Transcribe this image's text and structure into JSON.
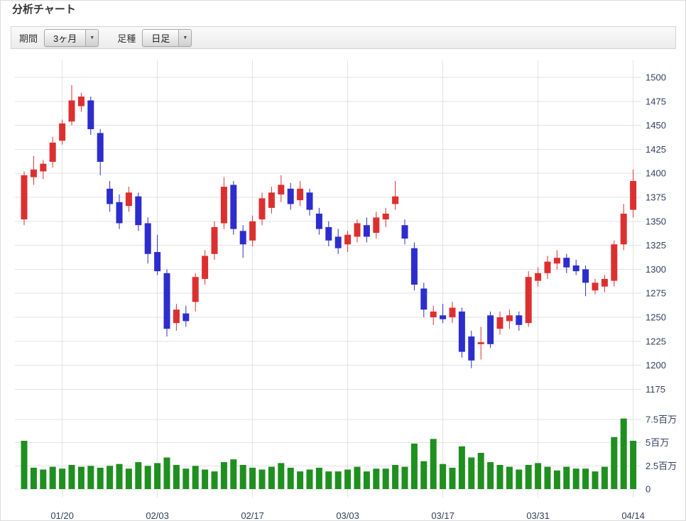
{
  "page": {
    "title": "分析チャート"
  },
  "toolbar": {
    "period_label": "期間",
    "period_value": "3ヶ月",
    "candle_type_label": "足種",
    "candle_type_value": "日足",
    "dropdown_arrow": "▼"
  },
  "chart_data": {
    "type": "candlestick",
    "title": "分析チャート",
    "grid": true,
    "price_axis": {
      "side": "right",
      "ticks": [
        1500,
        1475,
        1450,
        1425,
        1400,
        1375,
        1350,
        1325,
        1300,
        1275,
        1250,
        1225,
        1200,
        1175
      ]
    },
    "volume_axis": {
      "side": "right",
      "unit": "百万",
      "ticks": [
        {
          "label": "7.5百万",
          "value": 7.5
        },
        {
          "label": "5百万",
          "value": 5
        },
        {
          "label": "2.5百万",
          "value": 2.5
        },
        {
          "label": "0",
          "value": 0
        }
      ]
    },
    "x_axis": {
      "labels": [
        "01/20",
        "02/03",
        "02/17",
        "03/03",
        "03/17",
        "03/31",
        "04/14"
      ],
      "label_indices": [
        4,
        14,
        24,
        34,
        44,
        54,
        64
      ]
    },
    "colors": {
      "up": "#dc3030",
      "down": "#2d2dcd",
      "volume": "#1f8f1f",
      "grid": "#e2e2e2",
      "axis_text": "#333f5e"
    },
    "candles": {
      "columns": [
        "date",
        "open",
        "high",
        "low",
        "close",
        "volume_millions"
      ],
      "rows": [
        [
          "01/14",
          1352,
          1402,
          1346,
          1398,
          5.2
        ],
        [
          "01/15",
          1396,
          1418,
          1388,
          1404,
          2.3
        ],
        [
          "01/16",
          1402,
          1414,
          1394,
          1410,
          2.1
        ],
        [
          "01/17",
          1412,
          1438,
          1406,
          1432,
          2.4
        ],
        [
          "01/20",
          1434,
          1456,
          1430,
          1452,
          2.2
        ],
        [
          "01/21",
          1454,
          1492,
          1450,
          1476,
          2.6
        ],
        [
          "01/22",
          1470,
          1484,
          1464,
          1480,
          2.4
        ],
        [
          "01/23",
          1476,
          1480,
          1440,
          1446,
          2.5
        ],
        [
          "01/24",
          1442,
          1446,
          1398,
          1412,
          2.3
        ],
        [
          "01/27",
          1384,
          1392,
          1360,
          1368,
          2.5
        ],
        [
          "01/28",
          1370,
          1378,
          1342,
          1348,
          2.7
        ],
        [
          "01/29",
          1366,
          1386,
          1360,
          1380,
          2.2
        ],
        [
          "01/30",
          1376,
          1380,
          1340,
          1346,
          2.9
        ],
        [
          "01/31",
          1348,
          1354,
          1306,
          1316,
          2.5
        ],
        [
          "02/03",
          1318,
          1336,
          1294,
          1298,
          2.8
        ],
        [
          "02/04",
          1296,
          1300,
          1230,
          1238,
          3.4
        ],
        [
          "02/05",
          1244,
          1264,
          1236,
          1258,
          2.6
        ],
        [
          "02/06",
          1254,
          1262,
          1240,
          1246,
          2.2
        ],
        [
          "02/07",
          1266,
          1296,
          1256,
          1292,
          2.5
        ],
        [
          "02/10",
          1290,
          1320,
          1284,
          1314,
          2.1
        ],
        [
          "02/11",
          1316,
          1350,
          1310,
          1344,
          1.9
        ],
        [
          "02/12",
          1348,
          1396,
          1342,
          1386,
          2.9
        ],
        [
          "02/13",
          1388,
          1392,
          1336,
          1342,
          3.2
        ],
        [
          "02/14",
          1340,
          1346,
          1312,
          1326,
          2.6
        ],
        [
          "02/17",
          1330,
          1356,
          1324,
          1350,
          2.3
        ],
        [
          "02/18",
          1352,
          1380,
          1346,
          1374,
          2.1
        ],
        [
          "02/19",
          1364,
          1386,
          1358,
          1380,
          2.4
        ],
        [
          "02/20",
          1378,
          1398,
          1370,
          1388,
          2.8
        ],
        [
          "02/21",
          1384,
          1390,
          1362,
          1368,
          2.3
        ],
        [
          "02/24",
          1372,
          1392,
          1366,
          1384,
          1.9
        ],
        [
          "02/25",
          1380,
          1384,
          1356,
          1362,
          2.1
        ],
        [
          "02/26",
          1358,
          1364,
          1336,
          1342,
          2.3
        ],
        [
          "02/27",
          1344,
          1350,
          1324,
          1330,
          1.9
        ],
        [
          "02/28",
          1334,
          1342,
          1316,
          1322,
          1.9
        ],
        [
          "03/03",
          1326,
          1340,
          1318,
          1336,
          2.1
        ],
        [
          "03/04",
          1334,
          1352,
          1328,
          1348,
          2.4
        ],
        [
          "03/05",
          1346,
          1354,
          1328,
          1334,
          1.9
        ],
        [
          "03/06",
          1338,
          1360,
          1332,
          1354,
          2.2
        ],
        [
          "03/07",
          1352,
          1364,
          1344,
          1358,
          2.2
        ],
        [
          "03/10",
          1368,
          1392,
          1362,
          1376,
          2.6
        ],
        [
          "03/11",
          1346,
          1352,
          1326,
          1332,
          2.4
        ],
        [
          "03/12",
          1322,
          1328,
          1278,
          1284,
          4.9
        ],
        [
          "03/13",
          1280,
          1286,
          1250,
          1258,
          3.0
        ],
        [
          "03/14",
          1250,
          1262,
          1242,
          1256,
          5.4
        ],
        [
          "03/17",
          1252,
          1264,
          1244,
          1248,
          2.7
        ],
        [
          "03/18",
          1250,
          1266,
          1244,
          1260,
          2.3
        ],
        [
          "03/19",
          1256,
          1260,
          1208,
          1214,
          4.6
        ],
        [
          "03/20",
          1230,
          1236,
          1197,
          1205,
          3.4
        ],
        [
          "03/21",
          1222,
          1240,
          1206,
          1224,
          3.9
        ],
        [
          "03/24",
          1252,
          1256,
          1218,
          1222,
          2.9
        ],
        [
          "03/25",
          1238,
          1256,
          1232,
          1250,
          2.6
        ],
        [
          "03/26",
          1246,
          1258,
          1238,
          1252,
          2.4
        ],
        [
          "03/27",
          1252,
          1256,
          1236,
          1242,
          2.1
        ],
        [
          "03/28",
          1244,
          1298,
          1240,
          1292,
          2.6
        ],
        [
          "03/31",
          1288,
          1302,
          1282,
          1296,
          2.8
        ],
        [
          "04/01",
          1296,
          1314,
          1290,
          1308,
          2.4
        ],
        [
          "04/02",
          1306,
          1320,
          1300,
          1312,
          2.0
        ],
        [
          "04/03",
          1312,
          1316,
          1296,
          1302,
          2.4
        ],
        [
          "04/04",
          1304,
          1310,
          1294,
          1298,
          2.2
        ],
        [
          "04/07",
          1300,
          1304,
          1272,
          1286,
          2.2
        ],
        [
          "04/08",
          1278,
          1290,
          1274,
          1286,
          1.9
        ],
        [
          "04/09",
          1282,
          1294,
          1276,
          1290,
          2.4
        ],
        [
          "04/10",
          1288,
          1330,
          1282,
          1326,
          5.6
        ],
        [
          "04/11",
          1326,
          1368,
          1320,
          1358,
          7.6
        ],
        [
          "04/14",
          1362,
          1404,
          1354,
          1392,
          5.2
        ]
      ]
    }
  }
}
